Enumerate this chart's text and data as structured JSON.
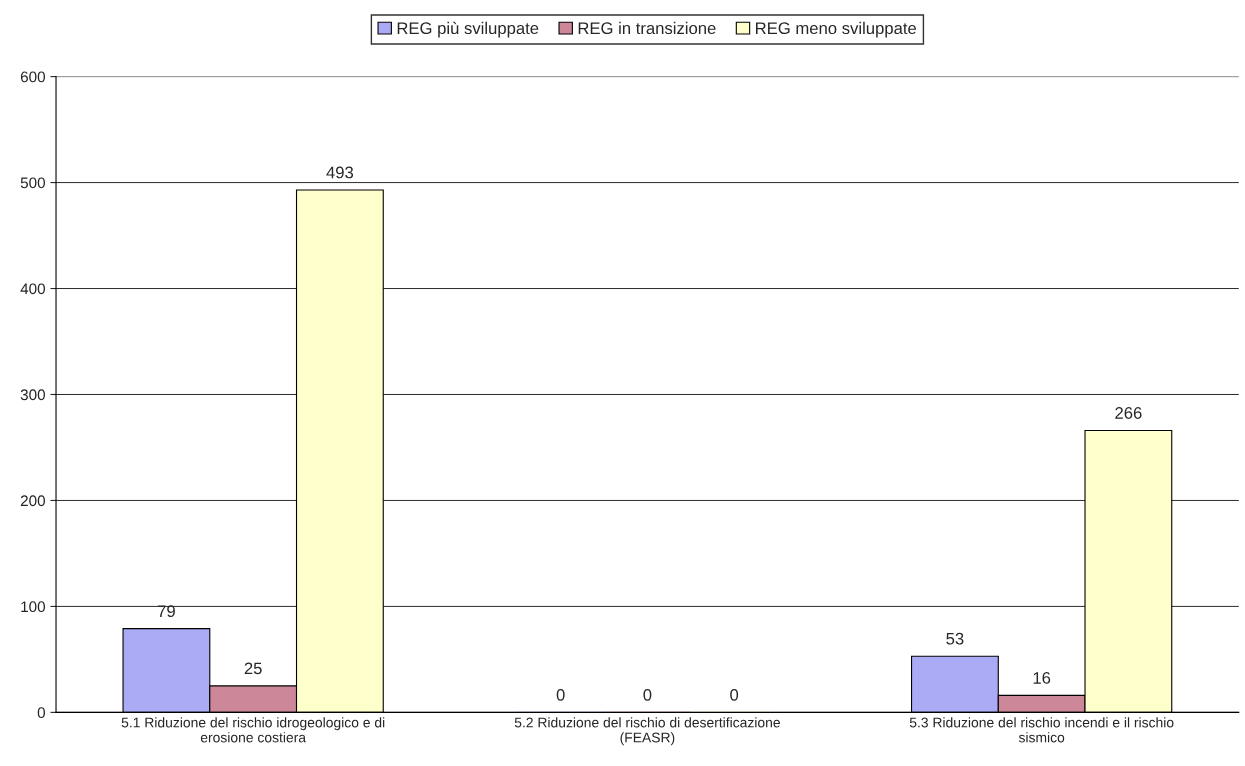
{
  "chart_data": {
    "type": "bar",
    "categories": [
      "5.1 Riduzione del rischio idrogeologico e di erosione costiera",
      "5.2 Riduzione del rischio di desertificazione (FEASR)",
      "5.3 Riduzione del rischio incendi e il rischio sismico"
    ],
    "series": [
      {
        "name": "REG più sviluppate",
        "color": "#aaaaf5",
        "values": [
          79,
          0,
          53
        ]
      },
      {
        "name": "REG in transizione",
        "color": "#cc8899",
        "values": [
          25,
          0,
          16
        ]
      },
      {
        "name": "REG meno sviluppate",
        "color": "#ffffcc",
        "values": [
          493,
          0,
          266
        ]
      }
    ],
    "ylim": [
      0,
      600
    ],
    "yticks": [
      0,
      100,
      200,
      300,
      400,
      500,
      600
    ],
    "grid": "y",
    "legend": "top",
    "data_labels": true
  }
}
